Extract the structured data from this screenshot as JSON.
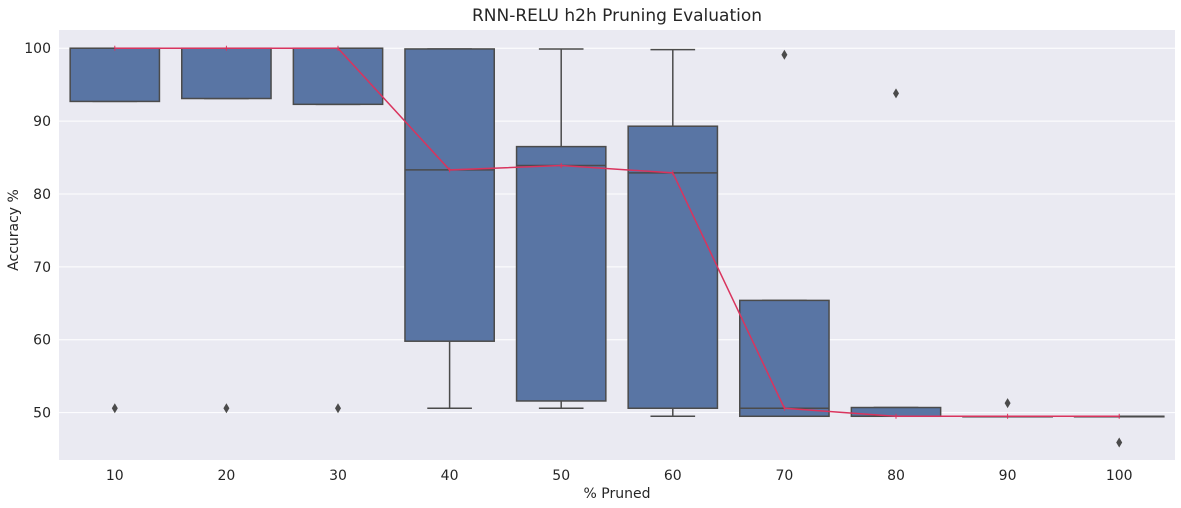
{
  "chart_data": {
    "type": "box",
    "title": "RNN-RELU h2h Pruning Evaluation",
    "xlabel": "% Pruned",
    "ylabel": "Accuracy %",
    "categories": [
      "10",
      "20",
      "30",
      "40",
      "50",
      "60",
      "70",
      "80",
      "90",
      "100"
    ],
    "ylim": [
      43.5,
      102.5
    ],
    "yticks": [
      50,
      60,
      70,
      80,
      90,
      100
    ],
    "grid": true,
    "boxes": [
      {
        "q1": 92.7,
        "median": 100.0,
        "q3": 100.0,
        "whisker_low": 92.7,
        "whisker_high": 100.0,
        "outliers": [
          50.6
        ]
      },
      {
        "q1": 93.1,
        "median": 100.0,
        "q3": 100.0,
        "whisker_low": 93.1,
        "whisker_high": 100.0,
        "outliers": [
          50.6
        ]
      },
      {
        "q1": 92.3,
        "median": 100.0,
        "q3": 100.0,
        "whisker_low": 92.3,
        "whisker_high": 100.0,
        "outliers": [
          50.6
        ]
      },
      {
        "q1": 59.8,
        "median": 83.3,
        "q3": 99.9,
        "whisker_low": 50.6,
        "whisker_high": 99.9,
        "outliers": []
      },
      {
        "q1": 51.6,
        "median": 83.9,
        "q3": 86.5,
        "whisker_low": 50.6,
        "whisker_high": 99.9,
        "outliers": []
      },
      {
        "q1": 50.6,
        "median": 82.9,
        "q3": 89.3,
        "whisker_low": 49.5,
        "whisker_high": 99.8,
        "outliers": []
      },
      {
        "q1": 49.5,
        "median": 50.6,
        "q3": 65.4,
        "whisker_low": 49.5,
        "whisker_high": 65.4,
        "outliers": [
          99.1
        ]
      },
      {
        "q1": 49.5,
        "median": 49.5,
        "q3": 50.7,
        "whisker_low": 49.5,
        "whisker_high": 50.7,
        "outliers": [
          93.8
        ]
      },
      {
        "q1": 49.5,
        "median": 49.5,
        "q3": 49.5,
        "whisker_low": 49.5,
        "whisker_high": 49.5,
        "outliers": [
          51.3
        ]
      },
      {
        "q1": 49.5,
        "median": 49.5,
        "q3": 49.5,
        "whisker_low": 49.5,
        "whisker_high": 49.5,
        "outliers": [
          45.9
        ]
      }
    ],
    "median_line": [
      100.0,
      100.0,
      100.0,
      83.3,
      83.9,
      82.9,
      50.6,
      49.5,
      49.5,
      49.5
    ],
    "colors": {
      "background": "#eaeaf2",
      "grid": "#ffffff",
      "box_fill": "#5975a4",
      "box_edge": "#4b4b4b",
      "median_line": "#d9345e"
    }
  }
}
